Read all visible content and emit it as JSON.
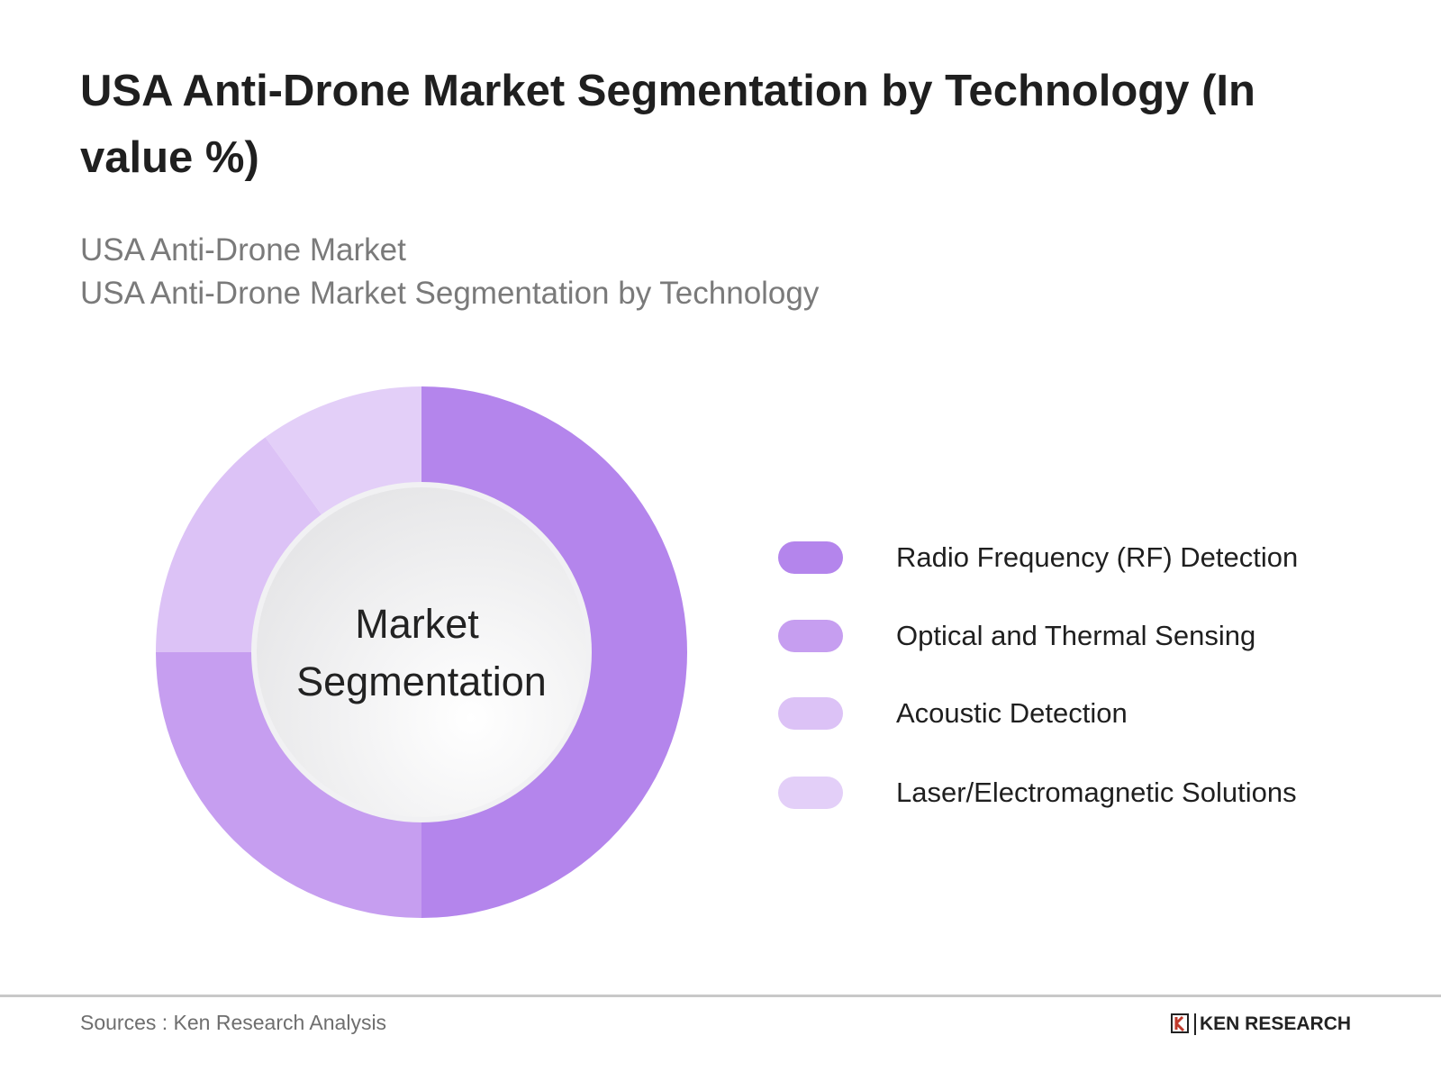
{
  "title": "USA Anti-Drone Market Segmentation by Technology (In value %)",
  "subtitle_lines": [
    "USA Anti-Drone Market",
    "USA Anti-Drone Market Segmentation by Technology"
  ],
  "chart_data": {
    "type": "pie",
    "variant": "donut",
    "center_label": [
      "Market",
      "Segmentation"
    ],
    "legend_position": "right",
    "series": [
      {
        "name": "Radio Frequency (RF) Detection",
        "value": 50,
        "color": "#b485ec"
      },
      {
        "name": "Optical and Thermal Sensing",
        "value": 25,
        "color": "#c69ef0"
      },
      {
        "name": "Acoustic Detection",
        "value": 15,
        "color": "#dcc2f6"
      },
      {
        "name": "Laser/Electromagnetic Solutions",
        "value": 10,
        "color": "#e3cff8"
      }
    ]
  },
  "footer": {
    "source": "Sources : Ken Research Analysis",
    "logo": "KEN RESEARCH"
  }
}
